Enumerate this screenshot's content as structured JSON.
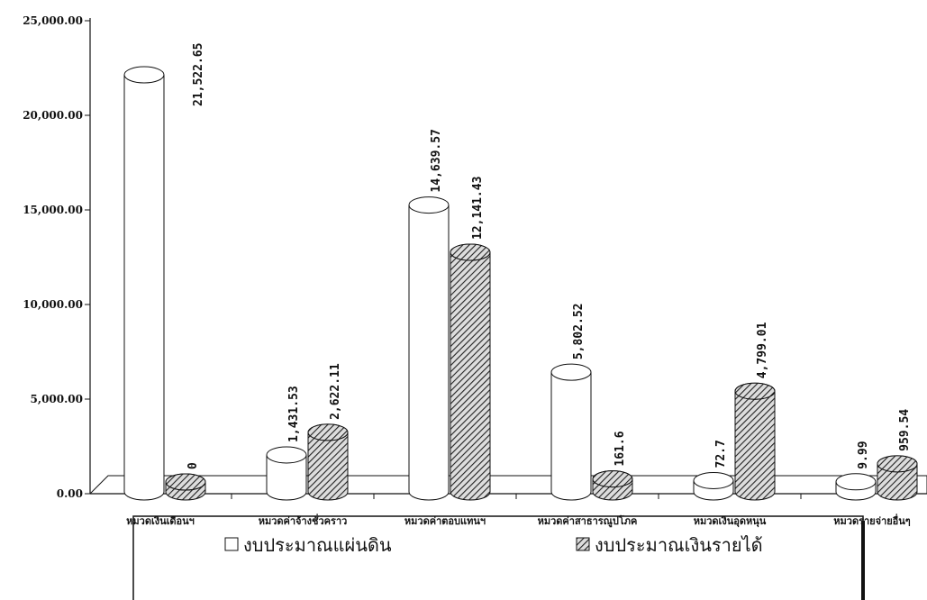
{
  "chart_data": {
    "type": "bar",
    "categories": [
      "หมวดเงินเดือนฯ",
      "หมวดค่าจ้างชั่วคราว",
      "หมวดค่าตอบแทนฯ",
      "หมวดค่าสาธารณูปโภค",
      "หมวดเงินอุดหนุน",
      "หมวดรายจ่ายอื่นๆ"
    ],
    "series": [
      {
        "name": "งบประมาณแผ่นดิน",
        "color": "#ffffff",
        "values": [
          21522.65,
          1431.53,
          14639.57,
          5802.52,
          72.7,
          9.99
        ],
        "value_labels": [
          "21,522.65",
          "1,431.53",
          "14,639.57",
          "5,802.52",
          "72.7",
          "9.99"
        ]
      },
      {
        "name": "งบประมาณเงินรายได้",
        "color": "#555555",
        "values": [
          0,
          2622.11,
          12141.43,
          161.6,
          4799.01,
          959.54
        ],
        "value_labels": [
          "0",
          "2,622.11",
          "12,141.43",
          "161.6",
          "4,799.01",
          "959.54"
        ]
      }
    ],
    "ylim": [
      0,
      25000
    ],
    "yticks": [
      {
        "value": 0,
        "label": "0.00"
      },
      {
        "value": 5000,
        "label": "5,000.00"
      },
      {
        "value": 10000,
        "label": "10,000.00"
      },
      {
        "value": 15000,
        "label": "15,000.00"
      },
      {
        "value": 20000,
        "label": "20,000.00"
      },
      {
        "value": 25000,
        "label": "25,000.00"
      }
    ]
  }
}
